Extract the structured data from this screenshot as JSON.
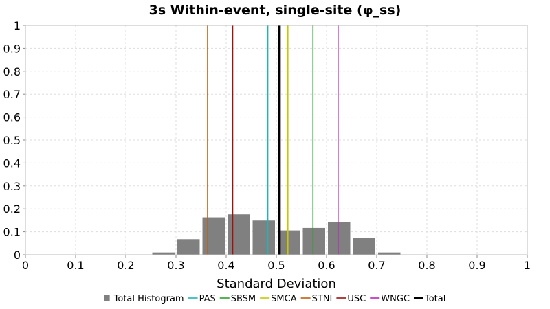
{
  "chart_data": {
    "type": "bar",
    "title": "3s Within-event, single-site (φ_ss)",
    "xlabel": "Standard Deviation",
    "ylabel": "",
    "xlim": [
      0,
      1
    ],
    "ylim": [
      0,
      1
    ],
    "x_ticks": [
      "0",
      "0.1",
      "0.2",
      "0.3",
      "0.4",
      "0.5",
      "0.6",
      "0.7",
      "0.8",
      "0.9",
      "1"
    ],
    "y_ticks": [
      "0",
      "0.1",
      "0.2",
      "0.3",
      "0.4",
      "0.5",
      "0.6",
      "0.7",
      "0.8",
      "0.9",
      "1"
    ],
    "grid": true,
    "legend_position": "bottom",
    "histogram": {
      "name": "Total Histogram",
      "color": "#808080",
      "bin_width": 0.05,
      "bins": [
        {
          "x": 0.275,
          "value": 0.01
        },
        {
          "x": 0.325,
          "value": 0.068
        },
        {
          "x": 0.375,
          "value": 0.163
        },
        {
          "x": 0.425,
          "value": 0.176
        },
        {
          "x": 0.475,
          "value": 0.149
        },
        {
          "x": 0.525,
          "value": 0.106
        },
        {
          "x": 0.575,
          "value": 0.117
        },
        {
          "x": 0.625,
          "value": 0.142
        },
        {
          "x": 0.675,
          "value": 0.072
        },
        {
          "x": 0.725,
          "value": 0.01
        }
      ]
    },
    "series": [
      {
        "name": "PAS",
        "value": 0.483,
        "color": "#1fb5b5"
      },
      {
        "name": "SBSM",
        "value": 0.573,
        "color": "#2ca02c"
      },
      {
        "name": "SMCA",
        "value": 0.523,
        "color": "#c8c800"
      },
      {
        "name": "STNI",
        "value": 0.363,
        "color": "#c06010"
      },
      {
        "name": "USC",
        "value": 0.413,
        "color": "#a01010"
      },
      {
        "name": "WNGC",
        "value": 0.623,
        "color": "#c020c0"
      },
      {
        "name": "Total",
        "value": 0.506,
        "color": "#000000"
      }
    ]
  }
}
